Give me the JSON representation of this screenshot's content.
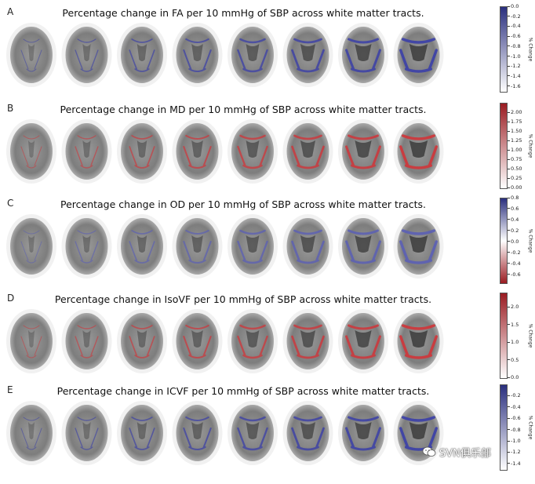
{
  "panels": [
    {
      "letter": "A",
      "title": "Percentage change in FA per 10 mmHg of SBP across white matter tracts.",
      "tract_color": "#3b3fa8",
      "colorbar": {
        "gradient": [
          "#ffffff",
          "#2a2f7e"
        ],
        "min": -1.7,
        "max": 0.0,
        "ticks": [
          "0.0",
          "-0.2",
          "-0.4",
          "-0.6",
          "-0.8",
          "-1.0",
          "-1.2",
          "-1.4",
          "-1.6"
        ],
        "label": "% Change"
      }
    },
    {
      "letter": "B",
      "title": "Percentage change in MD per 10 mmHg of SBP across white matter tracts.",
      "tract_color": "#d0353a",
      "colorbar": {
        "gradient": [
          "#ffffff",
          "#9a1c22"
        ],
        "min": 0.0,
        "max": 2.25,
        "ticks": [
          "2.00",
          "1.75",
          "1.50",
          "1.25",
          "1.00",
          "0.75",
          "0.50",
          "0.25",
          "0.00"
        ],
        "label": "% Change"
      }
    },
    {
      "letter": "C",
      "title": "Percentage change in OD per 10 mmHg of SBP across white matter tracts.",
      "tract_color": "#5b5fb5",
      "colorbar": {
        "gradient": [
          "#9a1c22",
          "#ffffff",
          "#2a2f7e"
        ],
        "min": -0.75,
        "max": 0.8,
        "ticks": [
          "0.8",
          "0.6",
          "0.4",
          "0.2",
          "0.0",
          "-0.2",
          "-0.4",
          "-0.6"
        ],
        "label": "% Change"
      }
    },
    {
      "letter": "D",
      "title": "Percentage change in IsoVF per 10 mmHg of SBP across white matter tracts.",
      "tract_color": "#d0353a",
      "colorbar": {
        "gradient": [
          "#ffffff",
          "#9a1c22"
        ],
        "min": 0.0,
        "max": 2.4,
        "ticks": [
          "2.0",
          "1.5",
          "1.0",
          "0.5",
          "0.0"
        ],
        "label": "% Change"
      }
    },
    {
      "letter": "E",
      "title": "Percentage change in ICVF per 10 mmHg of SBP across white matter tracts.",
      "tract_color": "#3b3fa8",
      "colorbar": {
        "gradient": [
          "#ffffff",
          "#2a2f7e"
        ],
        "min": -1.5,
        "max": 0.0,
        "ticks": [
          "-0.2",
          "-0.4",
          "-0.6",
          "-0.8",
          "-1.0",
          "-1.2",
          "-1.4"
        ],
        "label": "% Change"
      }
    }
  ],
  "watermark": "SVN俱乐部"
}
